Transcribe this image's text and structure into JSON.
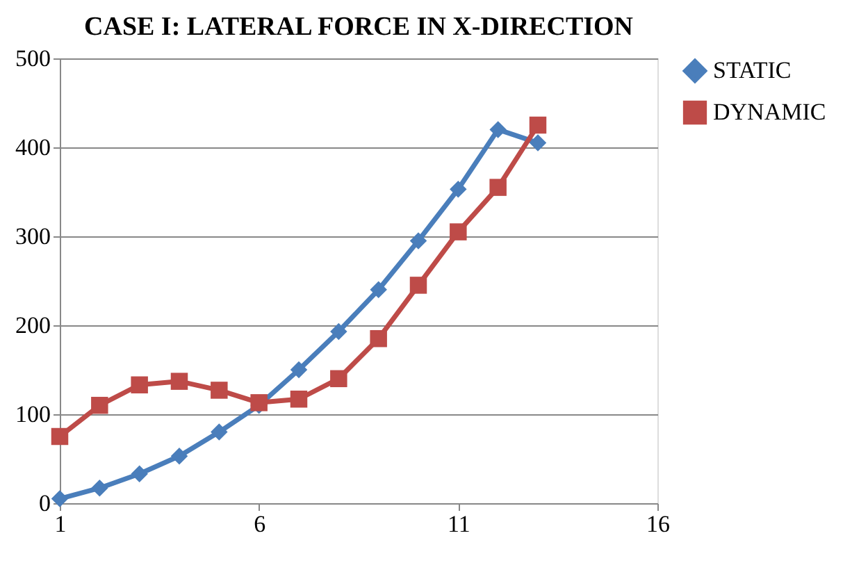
{
  "chart_data": {
    "type": "line",
    "title": "CASE I: LATERAL FORCE IN X-DIRECTION",
    "x": [
      1,
      2,
      3,
      4,
      5,
      6,
      7,
      8,
      9,
      10,
      11,
      12,
      13
    ],
    "series": [
      {
        "name": "STATIC",
        "color": "#4a7ebb",
        "marker": "diamond",
        "values": [
          5,
          17,
          33,
          53,
          80,
          110,
          150,
          193,
          240,
          295,
          353,
          420,
          405
        ]
      },
      {
        "name": "DYNAMIC",
        "color": "#be4b48",
        "marker": "square",
        "values": [
          75,
          110,
          133,
          137,
          127,
          113,
          117,
          140,
          185,
          245,
          305,
          355,
          425
        ]
      }
    ],
    "xlim": [
      1,
      16
    ],
    "xticks": [
      1,
      6,
      11,
      16
    ],
    "ylim": [
      0,
      500
    ],
    "yticks": [
      0,
      100,
      200,
      300,
      400,
      500
    ],
    "grid": "y",
    "legend": "right"
  }
}
